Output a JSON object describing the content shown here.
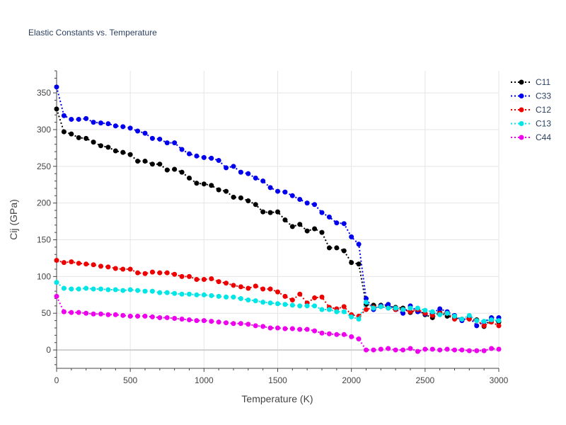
{
  "chart_data": {
    "type": "line",
    "title": "Elastic Constants vs. Temperature",
    "xlabel": "Temperature (K)",
    "ylabel": "Cij (GPa)",
    "xlim": [
      0,
      3000
    ],
    "ylim": [
      -25,
      380
    ],
    "xticks": [
      0,
      500,
      1000,
      1500,
      2000,
      2500,
      3000
    ],
    "xtick_labels": [
      "0",
      "500",
      "1000",
      "1500",
      "2000",
      "2500",
      "3000"
    ],
    "yticks": [
      0,
      50,
      100,
      150,
      200,
      250,
      300,
      350
    ],
    "ytick_labels": [
      "0",
      "50",
      "100",
      "150",
      "200",
      "250",
      "300",
      "350"
    ],
    "grid": true,
    "legend_position": "top-right",
    "x": [
      0,
      50,
      100,
      150,
      200,
      250,
      300,
      350,
      400,
      450,
      500,
      550,
      600,
      650,
      700,
      750,
      800,
      850,
      900,
      950,
      1000,
      1050,
      1100,
      1150,
      1200,
      1250,
      1300,
      1350,
      1400,
      1450,
      1500,
      1550,
      1600,
      1650,
      1700,
      1750,
      1800,
      1850,
      1900,
      1950,
      2000,
      2050,
      2100,
      2150,
      2200,
      2250,
      2300,
      2350,
      2400,
      2450,
      2500,
      2550,
      2600,
      2650,
      2700,
      2750,
      2800,
      2850,
      2900,
      2950,
      3000
    ],
    "series": [
      {
        "name": "C11",
        "color": "#000000",
        "values": [
          328,
          297,
          294,
          289,
          288,
          283,
          278,
          276,
          271,
          269,
          266,
          257,
          257,
          253,
          253,
          245,
          246,
          242,
          234,
          227,
          226,
          224,
          218,
          216,
          208,
          207,
          203,
          198,
          188,
          187,
          188,
          177,
          168,
          171,
          162,
          165,
          160,
          139,
          139,
          135,
          119,
          117,
          62,
          61,
          61,
          59,
          58,
          57,
          51,
          55,
          48,
          44,
          51,
          46,
          44,
          41,
          43,
          41,
          32,
          42,
          38
        ]
      },
      {
        "name": "C33",
        "color": "#0000ee",
        "values": [
          358,
          319,
          314,
          314,
          315,
          310,
          309,
          308,
          305,
          304,
          302,
          298,
          295,
          288,
          287,
          282,
          282,
          273,
          267,
          264,
          262,
          261,
          258,
          248,
          250,
          242,
          240,
          234,
          230,
          221,
          216,
          215,
          210,
          205,
          200,
          198,
          187,
          181,
          173,
          172,
          154,
          144,
          70,
          55,
          60,
          62,
          55,
          50,
          60,
          52,
          49,
          50,
          56,
          52,
          47,
          40,
          45,
          33,
          38,
          44,
          44
        ]
      },
      {
        "name": "C12",
        "color": "#ee0000",
        "values": [
          122,
          119,
          120,
          118,
          117,
          116,
          114,
          113,
          111,
          110,
          110,
          105,
          104,
          106,
          105,
          105,
          103,
          100,
          100,
          96,
          96,
          97,
          93,
          91,
          88,
          86,
          84,
          87,
          83,
          83,
          79,
          73,
          68,
          76,
          64,
          71,
          72,
          58,
          56,
          59,
          48,
          46,
          55,
          58,
          59,
          57,
          55,
          55,
          52,
          55,
          50,
          47,
          50,
          50,
          42,
          42,
          42,
          40,
          33,
          38,
          33
        ]
      },
      {
        "name": "C13",
        "color": "#00e6e6",
        "values": [
          92,
          84,
          83,
          83,
          84,
          83,
          83,
          82,
          82,
          81,
          82,
          81,
          80,
          80,
          78,
          78,
          77,
          76,
          76,
          75,
          75,
          74,
          73,
          72,
          72,
          70,
          68,
          67,
          65,
          64,
          63,
          62,
          61,
          60,
          60,
          60,
          55,
          55,
          52,
          52,
          45,
          42,
          65,
          57,
          59,
          57,
          57,
          55,
          57,
          57,
          54,
          52,
          48,
          50,
          46,
          42,
          47,
          40,
          39,
          41,
          40
        ]
      },
      {
        "name": "C44",
        "color": "#ee00ee",
        "values": [
          73,
          52,
          51,
          51,
          50,
          49,
          49,
          48,
          48,
          47,
          46,
          46,
          46,
          45,
          44,
          44,
          43,
          42,
          41,
          40,
          40,
          39,
          38,
          37,
          36,
          36,
          35,
          33,
          32,
          30,
          30,
          29,
          29,
          28,
          28,
          26,
          23,
          22,
          21,
          21,
          18,
          15,
          0,
          0,
          1,
          2,
          0,
          0,
          2,
          -2,
          1,
          1,
          0,
          1,
          0,
          0,
          -1,
          -1,
          -1,
          2,
          1
        ]
      }
    ]
  }
}
